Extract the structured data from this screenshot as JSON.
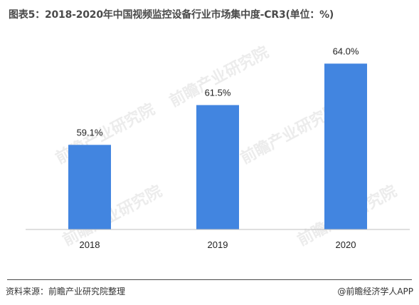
{
  "title": "图表5：2018-2020年中国视频监控设备行业市场集中度-CR3(单位：%)",
  "footer": {
    "source": "资料来源：前瞻产业研究院整理",
    "brand": "@前瞻经济学人APP"
  },
  "watermark": {
    "text": "前瞻产业研究院"
  },
  "colors": {
    "bar": "#4285e0",
    "axis": "#bfbfbf",
    "title": "#4a4a4a"
  },
  "chart_data": {
    "type": "bar",
    "categories": [
      "2018",
      "2019",
      "2020"
    ],
    "values": [
      59.1,
      61.5,
      64.0
    ],
    "value_labels": [
      "59.1%",
      "61.5%",
      "64.0%"
    ],
    "title": "图表5：2018-2020年中国视频监控设备行业市场集中度-CR3(单位：%)",
    "xlabel": "",
    "ylabel": "",
    "ylim": [
      54,
      65
    ],
    "grid": false,
    "legend": "none"
  }
}
